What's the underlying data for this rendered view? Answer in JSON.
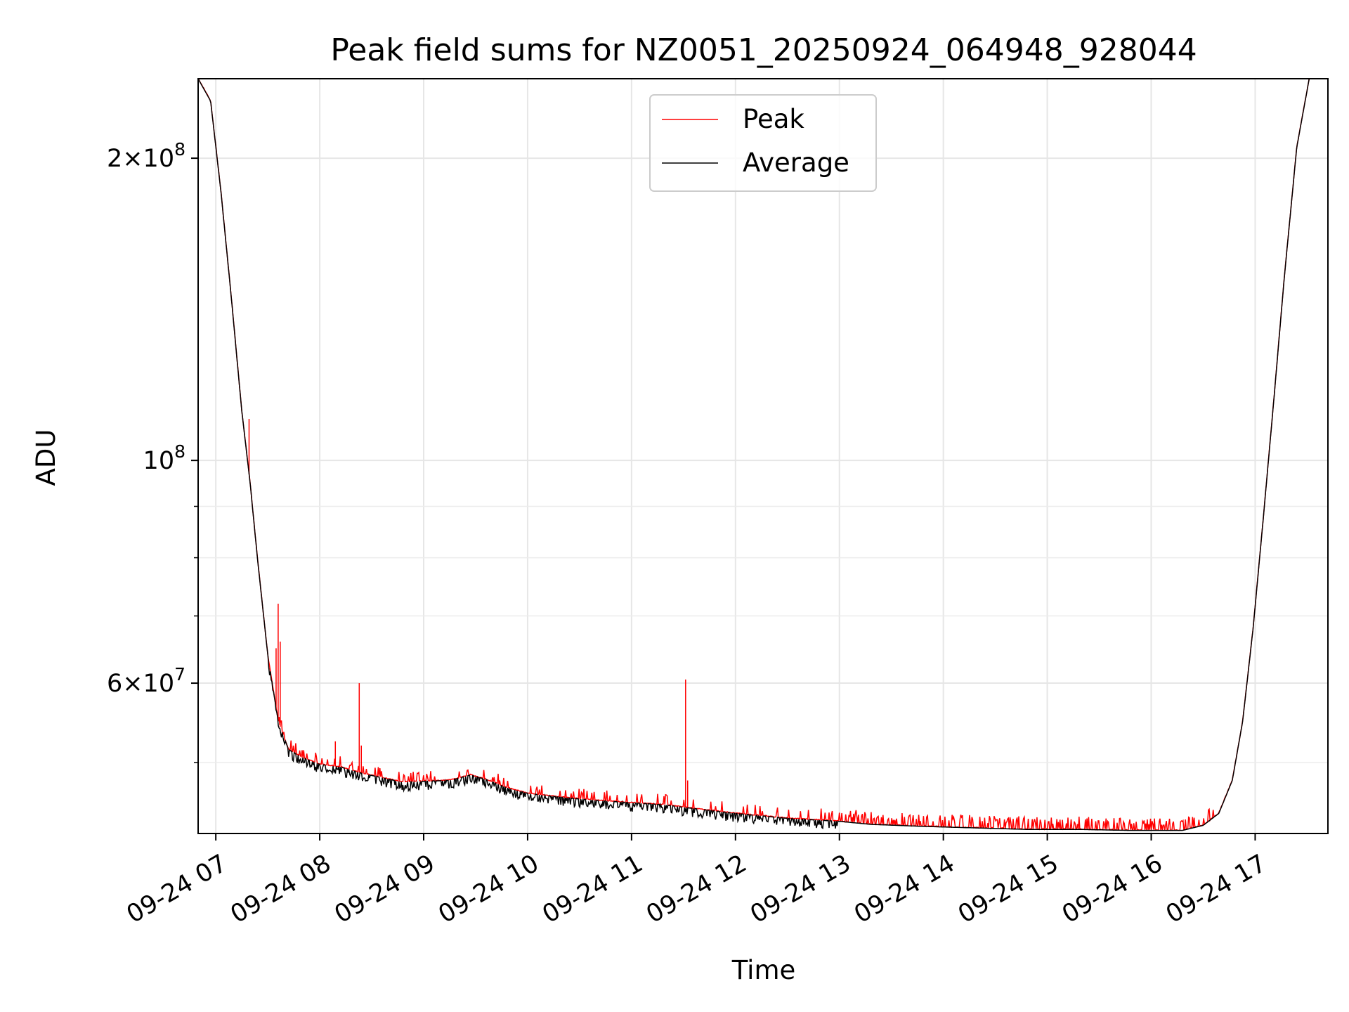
{
  "chart_data": {
    "type": "line",
    "title": "Peak field sums for NZ0051_20250924_064948_928044",
    "xlabel": "Time",
    "ylabel": "ADU",
    "yscale": "log",
    "ylim": [
      42500000,
      240000000
    ],
    "xlim_hours": [
      6.83,
      17.7
    ],
    "grid": true,
    "legend_position": "upper center",
    "x_ticks": [
      {
        "hour": 7,
        "label": "09-24 07"
      },
      {
        "hour": 8,
        "label": "09-24 08"
      },
      {
        "hour": 9,
        "label": "09-24 09"
      },
      {
        "hour": 10,
        "label": "09-24 10"
      },
      {
        "hour": 11,
        "label": "09-24 11"
      },
      {
        "hour": 12,
        "label": "09-24 12"
      },
      {
        "hour": 13,
        "label": "09-24 13"
      },
      {
        "hour": 14,
        "label": "09-24 14"
      },
      {
        "hour": 15,
        "label": "09-24 15"
      },
      {
        "hour": 16,
        "label": "09-24 16"
      },
      {
        "hour": 17,
        "label": "09-24 17"
      }
    ],
    "y_major_ticks": [
      {
        "value": 60000000,
        "mant": "6",
        "exp": "7"
      },
      {
        "value": 100000000,
        "mant": "",
        "exp": "8"
      },
      {
        "value": 200000000,
        "mant": "2",
        "exp": "8"
      }
    ],
    "y_minor_ticks": [
      50000000,
      70000000,
      80000000,
      90000000
    ],
    "series": [
      {
        "name": "Peak",
        "color": "#ff0000",
        "spikes": [
          {
            "hour": 7.32,
            "value": 110000000
          },
          {
            "hour": 7.58,
            "value": 65000000
          },
          {
            "hour": 7.6,
            "value": 72000000
          },
          {
            "hour": 7.62,
            "value": 66000000
          },
          {
            "hour": 8.15,
            "value": 52500000
          },
          {
            "hour": 8.38,
            "value": 60000000
          },
          {
            "hour": 8.4,
            "value": 52000000
          },
          {
            "hour": 11.52,
            "value": 60500000
          },
          {
            "hour": 11.54,
            "value": 48000000
          }
        ]
      },
      {
        "name": "Average",
        "color": "#000000",
        "points": [
          [
            6.83,
            240000000
          ],
          [
            6.95,
            228000000
          ],
          [
            7.05,
            185000000
          ],
          [
            7.15,
            145000000
          ],
          [
            7.25,
            112000000
          ],
          [
            7.33,
            95000000
          ],
          [
            7.4,
            80000000
          ],
          [
            7.5,
            64000000
          ],
          [
            7.6,
            55000000
          ],
          [
            7.7,
            51500000
          ],
          [
            7.85,
            50500000
          ],
          [
            8.0,
            49800000
          ],
          [
            8.2,
            49500000
          ],
          [
            8.4,
            48800000
          ],
          [
            8.6,
            48300000
          ],
          [
            8.8,
            47800000
          ],
          [
            9.0,
            47900000
          ],
          [
            9.25,
            48000000
          ],
          [
            9.45,
            48600000
          ],
          [
            9.6,
            48100000
          ],
          [
            9.8,
            47200000
          ],
          [
            10.0,
            46600000
          ],
          [
            10.3,
            46200000
          ],
          [
            10.6,
            45900000
          ],
          [
            11.0,
            45600000
          ],
          [
            11.3,
            45400000
          ],
          [
            11.6,
            45000000
          ],
          [
            12.0,
            44500000
          ],
          [
            12.5,
            44000000
          ],
          [
            13.0,
            43700000
          ],
          [
            13.3,
            43400000
          ],
          [
            13.8,
            43200000
          ],
          [
            14.3,
            43050000
          ],
          [
            14.8,
            42900000
          ],
          [
            15.3,
            42900000
          ],
          [
            15.8,
            42800000
          ],
          [
            16.1,
            42800000
          ],
          [
            16.3,
            42800000
          ],
          [
            16.5,
            43300000
          ],
          [
            16.65,
            44500000
          ],
          [
            16.78,
            48000000
          ],
          [
            16.88,
            55000000
          ],
          [
            16.98,
            68000000
          ],
          [
            17.08,
            88000000
          ],
          [
            17.18,
            115000000
          ],
          [
            17.28,
            152000000
          ],
          [
            17.4,
            205000000
          ],
          [
            17.52,
            240000000
          ]
        ]
      }
    ]
  }
}
